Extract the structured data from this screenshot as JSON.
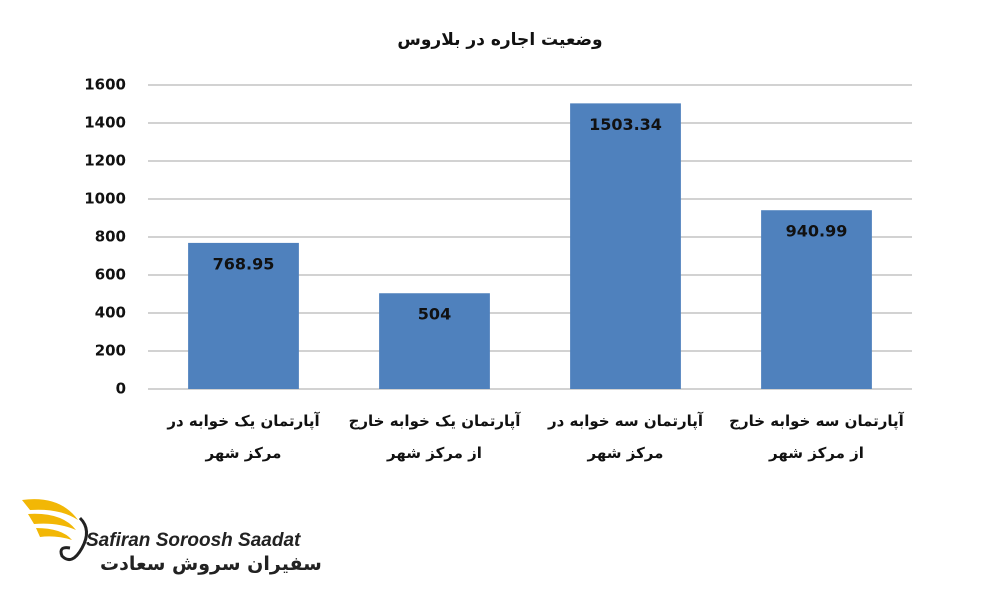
{
  "chart_data": {
    "type": "bar",
    "title": "وضعیت اجاره در بلاروس",
    "categories": [
      "آپارتمان یک خوابه در مرکز شهر",
      "آپارتمان یک خوابه خارج از مرکز شهر",
      "آپارتمان سه خوابه در مرکز شهر",
      "آپارتمان سه خوابه خارج از مرکز شهر"
    ],
    "values": [
      768.95,
      504,
      1503.34,
      940.99
    ],
    "color": "#4f81bd",
    "ylim": [
      0,
      1600
    ],
    "yticks": [
      0,
      200,
      400,
      600,
      800,
      1000,
      1200,
      1400,
      1600
    ],
    "grid": true
  },
  "logo": {
    "name_latin": "Safiran Soroosh Saadat",
    "name_persian": "سفیران سروش سعادت"
  }
}
